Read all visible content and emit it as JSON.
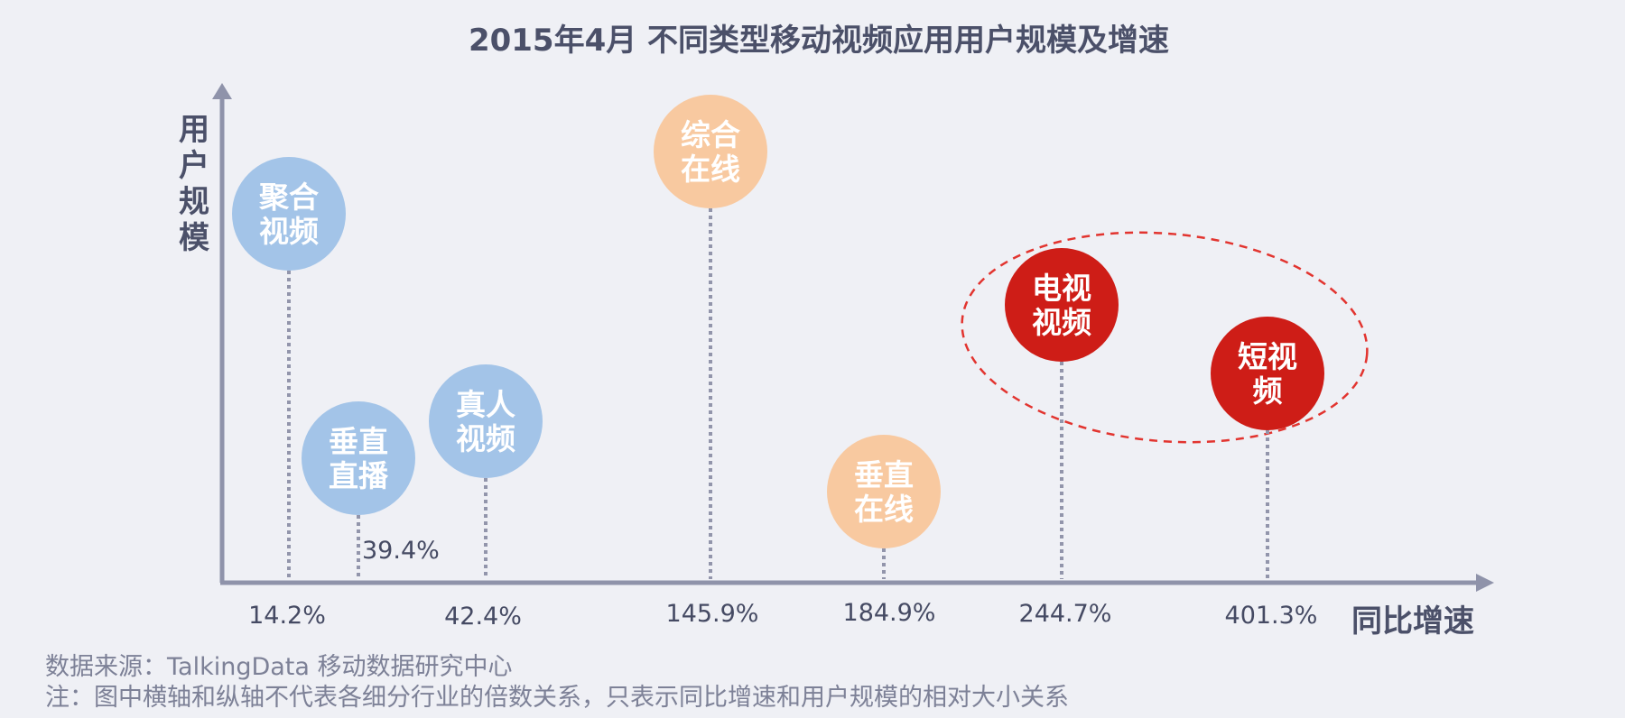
{
  "chart_data": {
    "type": "bubble",
    "title": "2015年4月 不同类型移动视频应用用户规模及增速",
    "ylabel": "用户规模",
    "xlabel": "同比增速",
    "categories": [
      "14.2%",
      "39.4%",
      "42.4%",
      "145.9%",
      "184.9%",
      "244.7%",
      "401.3%"
    ],
    "points": [
      {
        "label_lines": [
          "聚合",
          "视频"
        ],
        "x_label": "14.2%",
        "x": 14.2,
        "scale_rank": 6,
        "group": "blue"
      },
      {
        "label_lines": [
          "垂直",
          "直播"
        ],
        "x_label": "39.4%",
        "x": 39.4,
        "scale_rank": 2,
        "group": "blue"
      },
      {
        "label_lines": [
          "真人",
          "视频"
        ],
        "x_label": "42.4%",
        "x": 42.4,
        "scale_rank": 3,
        "group": "blue"
      },
      {
        "label_lines": [
          "综合",
          "在线"
        ],
        "x_label": "145.9%",
        "x": 145.9,
        "scale_rank": 7,
        "group": "orange"
      },
      {
        "label_lines": [
          "垂直",
          "在线"
        ],
        "x_label": "184.9%",
        "x": 184.9,
        "scale_rank": 1,
        "group": "orange"
      },
      {
        "label_lines": [
          "电视",
          "视频"
        ],
        "x_label": "244.7%",
        "x": 244.7,
        "scale_rank": 5,
        "group": "red"
      },
      {
        "label_lines": [
          "短视",
          "频"
        ],
        "x_label": "401.3%",
        "x": 401.3,
        "scale_rank": 4,
        "group": "red"
      }
    ],
    "highlight": {
      "members": [
        "电视视频",
        "短视频"
      ],
      "style": "red dashed ellipse"
    },
    "colors": {
      "blue": "#a3c4e8",
      "orange": "#f8c9a0",
      "red": "#ce1d17",
      "axis": "#8f93aa",
      "stem": "#9295ab",
      "ellipse": "#e2342f"
    }
  },
  "footer": {
    "source": "数据来源：TalkingData 移动数据研究中心",
    "note": "注：图中横轴和纵轴不代表各细分行业的倍数关系，只表示同比增速和用户规模的相对大小关系"
  }
}
